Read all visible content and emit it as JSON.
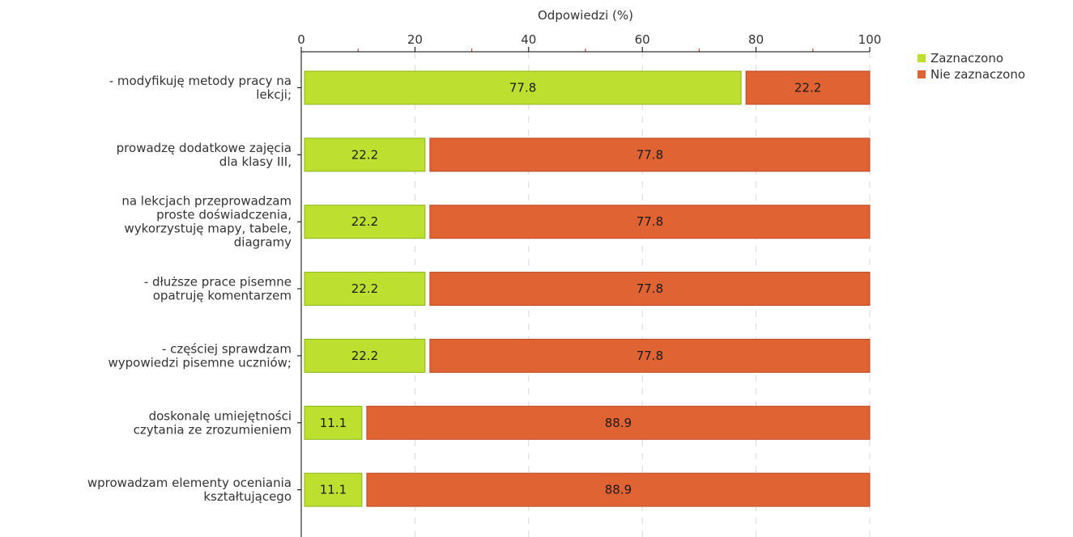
{
  "chart_data": {
    "type": "bar",
    "orientation": "horizontal",
    "stacked": true,
    "xlabel": "Odpowiedzi (%)",
    "xlim": [
      0,
      100
    ],
    "xticks": [
      "0",
      "20",
      "40",
      "60",
      "80",
      "100"
    ],
    "grid": true,
    "legend_position": "top-right",
    "categories": [
      [
        "- modyfikuję metody pracy na",
        "lekcji;"
      ],
      [
        "prowadzę dodatkowe zajęcia",
        "dla klasy III,"
      ],
      [
        "na lekcjach przeprowadzam",
        "proste doświadczenia,",
        "wykorzystuję mapy, tabele,",
        "diagramy"
      ],
      [
        "- dłuższe prace pisemne",
        "opatruję komentarzem"
      ],
      [
        "- częściej sprawdzam",
        "wypowiedzi pisemne uczniów;"
      ],
      [
        "doskonalę umiejętności",
        "czytania ze zrozumieniem"
      ],
      [
        "wprowadzam elementy oceniania",
        "kształtującego"
      ]
    ],
    "series": [
      {
        "name": "Zaznaczono",
        "color": "#bde030",
        "stroke": "#8bb516",
        "values": [
          77.8,
          22.2,
          22.2,
          22.2,
          22.2,
          11.1,
          11.1
        ],
        "labels": [
          "77.8",
          "22.2",
          "22.2",
          "22.2",
          "22.2",
          "11.1",
          "11.1"
        ]
      },
      {
        "name": "Nie zaznaczono",
        "color": "#e06333",
        "stroke": "#b94a22",
        "values": [
          22.2,
          77.8,
          77.8,
          77.8,
          77.8,
          88.9,
          88.9
        ],
        "labels": [
          "22.2",
          "77.8",
          "77.8",
          "77.8",
          "77.8",
          "88.9",
          "88.9"
        ]
      }
    ]
  }
}
